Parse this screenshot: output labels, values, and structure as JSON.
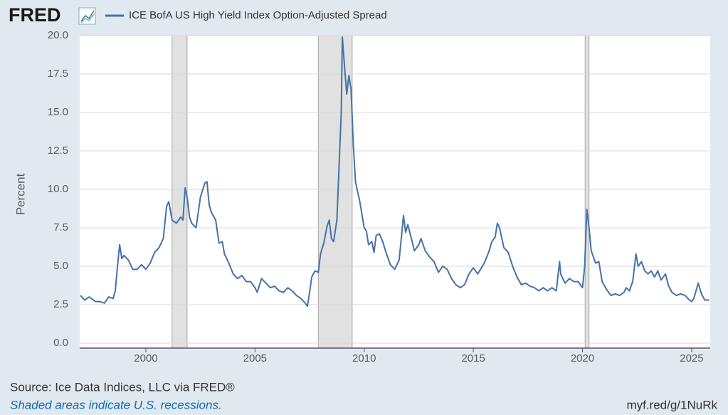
{
  "chart_data": {
    "type": "line",
    "logo": "FRED",
    "y_label": "Percent",
    "source": "Source: Ice Data Indices, LLC via FRED®",
    "note": "Shaded areas indicate U.S. recessions.",
    "link": "myf.red/g/1NuRk",
    "grid": true,
    "xlim": [
      1996.97,
      2025.85
    ],
    "ylim": [
      0,
      20
    ],
    "xticks": [
      2000,
      2005,
      2010,
      2015,
      2020,
      2025
    ],
    "yticks": [
      {
        "value": 0,
        "label": "0.0"
      },
      2.5,
      {
        "value": 5,
        "label": "5.0"
      },
      7.5,
      {
        "value": 10,
        "label": "10.0"
      },
      12.5,
      {
        "value": 15,
        "label": "15.0"
      },
      17.5,
      {
        "value": 20,
        "label": "20.0"
      }
    ],
    "recessions": [
      [
        2001.2,
        2001.89
      ],
      [
        2007.9,
        2009.45
      ],
      [
        2020.12,
        2020.3
      ]
    ],
    "x": [
      1997.0,
      1997.2,
      1997.4,
      1997.7,
      1997.9,
      1998.1,
      1998.3,
      1998.5,
      1998.6,
      1998.7,
      1998.8,
      1998.9,
      1999.0,
      1999.2,
      1999.4,
      1999.6,
      1999.8,
      2000.0,
      2000.2,
      2000.4,
      2000.6,
      2000.8,
      2000.95,
      2001.05,
      2001.2,
      2001.4,
      2001.6,
      2001.7,
      2001.8,
      2001.9,
      2002.0,
      2002.1,
      2002.3,
      2002.5,
      2002.7,
      2002.8,
      2002.9,
      2003.0,
      2003.2,
      2003.35,
      2003.5,
      2003.6,
      2003.8,
      2004.0,
      2004.2,
      2004.4,
      2004.6,
      2004.8,
      2005.0,
      2005.1,
      2005.3,
      2005.5,
      2005.7,
      2005.9,
      2006.1,
      2006.3,
      2006.5,
      2006.7,
      2006.9,
      2007.1,
      2007.3,
      2007.4,
      2007.5,
      2007.6,
      2007.75,
      2007.9,
      2008.0,
      2008.15,
      2008.3,
      2008.4,
      2008.5,
      2008.6,
      2008.75,
      2008.85,
      2008.95,
      2009.0,
      2009.1,
      2009.2,
      2009.3,
      2009.4,
      2009.5,
      2009.6,
      2009.8,
      2010.0,
      2010.1,
      2010.2,
      2010.35,
      2010.45,
      2010.55,
      2010.7,
      2010.85,
      2011.0,
      2011.2,
      2011.4,
      2011.6,
      2011.7,
      2011.8,
      2011.9,
      2012.0,
      2012.2,
      2012.3,
      2012.5,
      2012.6,
      2012.8,
      2013.0,
      2013.2,
      2013.4,
      2013.6,
      2013.8,
      2014.0,
      2014.2,
      2014.4,
      2014.6,
      2014.8,
      2015.0,
      2015.2,
      2015.5,
      2015.7,
      2015.85,
      2016.0,
      2016.1,
      2016.2,
      2016.4,
      2016.6,
      2016.8,
      2017.0,
      2017.2,
      2017.4,
      2017.6,
      2017.8,
      2018.0,
      2018.2,
      2018.4,
      2018.6,
      2018.8,
      2018.95,
      2019.0,
      2019.2,
      2019.4,
      2019.6,
      2019.8,
      2020.0,
      2020.1,
      2020.2,
      2020.3,
      2020.4,
      2020.6,
      2020.75,
      2020.9,
      2021.1,
      2021.3,
      2021.5,
      2021.7,
      2021.9,
      2022.0,
      2022.15,
      2022.3,
      2022.45,
      2022.55,
      2022.7,
      2022.85,
      2023.0,
      2023.15,
      2023.3,
      2023.45,
      2023.6,
      2023.8,
      2023.95,
      2024.1,
      2024.3,
      2024.5,
      2024.7,
      2024.9,
      2025.0,
      2025.1,
      2025.3,
      2025.45,
      2025.6,
      2025.8
    ],
    "series": [
      {
        "name": "ICE BofA US High Yield Index Option-Adjusted Spread",
        "color": "#4572a7",
        "values": [
          3.1,
          2.8,
          3.0,
          2.7,
          2.7,
          2.6,
          3.0,
          2.9,
          3.4,
          5.0,
          6.4,
          5.5,
          5.7,
          5.4,
          4.8,
          4.8,
          5.1,
          4.8,
          5.2,
          5.9,
          6.2,
          6.8,
          8.9,
          9.2,
          8.0,
          7.8,
          8.2,
          8.0,
          10.1,
          9.4,
          8.2,
          7.8,
          7.5,
          9.5,
          10.4,
          10.5,
          9.0,
          8.5,
          8.0,
          6.5,
          6.6,
          5.8,
          5.2,
          4.5,
          4.2,
          4.4,
          4.0,
          4.0,
          3.6,
          3.3,
          4.2,
          3.9,
          3.6,
          3.7,
          3.4,
          3.3,
          3.6,
          3.4,
          3.1,
          2.9,
          2.6,
          2.4,
          3.3,
          4.3,
          4.7,
          4.6,
          5.8,
          6.5,
          7.6,
          8.0,
          6.8,
          6.6,
          8.0,
          11.5,
          15.0,
          19.9,
          18.0,
          16.2,
          17.4,
          16.5,
          13.0,
          10.5,
          9.2,
          7.5,
          7.3,
          6.4,
          6.6,
          5.9,
          7.0,
          7.1,
          6.6,
          5.9,
          5.1,
          4.8,
          5.4,
          6.8,
          8.3,
          7.2,
          7.7,
          6.6,
          6.0,
          6.4,
          6.8,
          6.0,
          5.6,
          5.3,
          4.6,
          5.0,
          4.8,
          4.2,
          3.8,
          3.6,
          3.8,
          4.5,
          4.9,
          4.5,
          5.2,
          5.9,
          6.6,
          6.9,
          7.8,
          7.5,
          6.2,
          5.9,
          5.0,
          4.3,
          3.8,
          3.9,
          3.7,
          3.6,
          3.4,
          3.6,
          3.4,
          3.6,
          3.4,
          5.3,
          4.5,
          3.9,
          4.2,
          4.0,
          4.0,
          3.6,
          5.0,
          8.7,
          7.5,
          6.0,
          5.2,
          5.3,
          4.0,
          3.5,
          3.1,
          3.2,
          3.1,
          3.3,
          3.6,
          3.4,
          4.0,
          5.8,
          5.0,
          5.3,
          4.7,
          4.5,
          4.7,
          4.3,
          4.7,
          4.1,
          4.5,
          3.7,
          3.3,
          3.1,
          3.2,
          3.1,
          2.8,
          2.7,
          2.9,
          3.9,
          3.2,
          2.8,
          2.8
        ]
      }
    ]
  }
}
